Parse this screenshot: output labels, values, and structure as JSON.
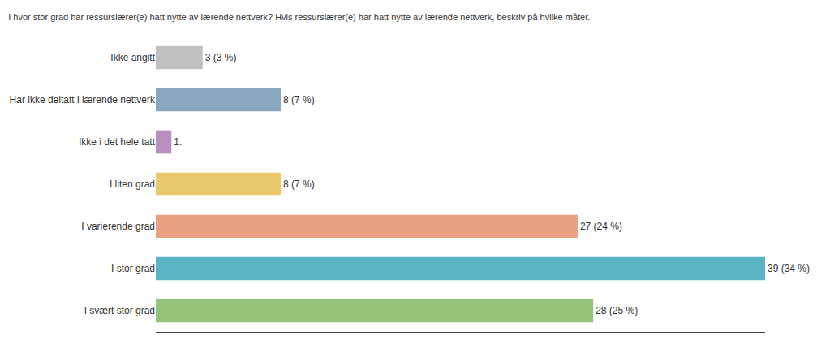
{
  "chart_data": {
    "type": "bar",
    "orientation": "horizontal",
    "title": "I hvor stor grad har ressurslærer(e) hatt nytte av lærende nettverk? Hvis ressurslærer(e) har hatt nytte av lærende nettverk, beskriv på hvilke måter.",
    "categories": [
      "I svært stor grad",
      "I stor grad",
      "I varierende grad",
      "I liten grad",
      "Ikke i det hele tatt",
      "Har ikke deltatt i lærende nettverk",
      "Ikke angitt"
    ],
    "values": [
      28,
      39,
      27,
      8,
      1,
      8,
      3
    ],
    "value_labels": [
      "28 (25 %)",
      "39 (34 %)",
      "27 (24 %)",
      "8 (7 %)",
      "1.",
      "8 (7 %)",
      "3 (3 %)"
    ],
    "colors": [
      "#96c37a",
      "#5ab4c5",
      "#e8a080",
      "#e8c86a",
      "#b98fc0",
      "#8aa8be",
      "#c0c0c0"
    ],
    "xlim": [
      0,
      39
    ],
    "grid": false,
    "data_labels": true,
    "tick_labels": "y"
  }
}
